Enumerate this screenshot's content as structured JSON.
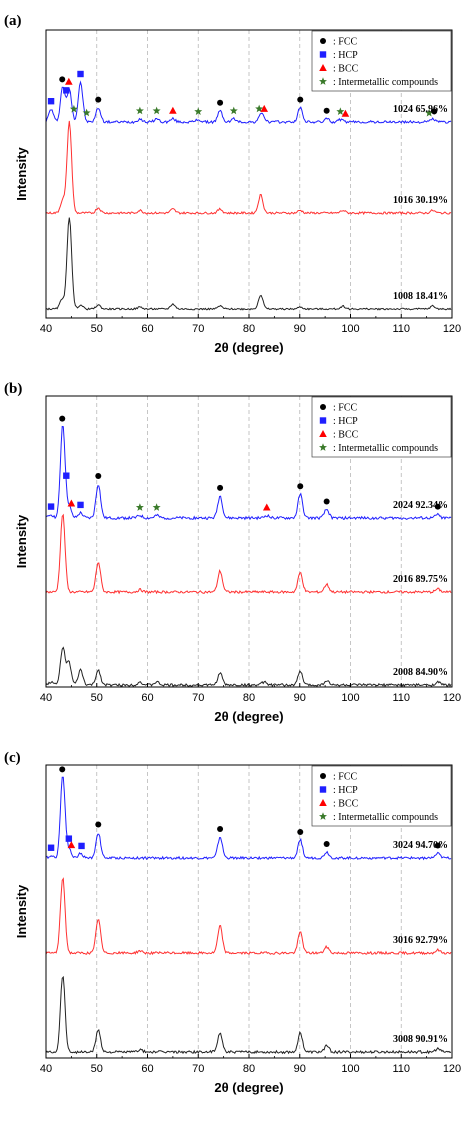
{
  "chart_data": [
    {
      "type": "line",
      "panel_label": "(a)",
      "xlabel": "2θ (degree)",
      "ylabel": "Intensity",
      "xlim": [
        40,
        120
      ],
      "xticks": [
        40,
        50,
        60,
        70,
        80,
        90,
        100,
        110,
        120
      ],
      "grid": "vertical dashed",
      "legend_position": "top-right",
      "legend": [
        {
          "marker": "circle",
          "color": "#000000",
          "label": ": FCC"
        },
        {
          "marker": "square",
          "color": "#1f1fff",
          "label": ": HCP"
        },
        {
          "marker": "triangle",
          "color": "#ff0000",
          "label": ": BCC"
        },
        {
          "marker": "star",
          "color": "#3a7a2a",
          "label": ": Intermetallic compounds"
        }
      ],
      "series": [
        {
          "sample": "1024",
          "percent": "65.96%",
          "color": "#1f1fff",
          "peaks": [
            [
              41,
              8
            ],
            [
              43.3,
              22
            ],
            [
              44.6,
              20
            ],
            [
              46.8,
              25
            ],
            [
              50.3,
              9
            ],
            [
              58.5,
              2
            ],
            [
              61.8,
              2
            ],
            [
              65,
              2
            ],
            [
              70,
              1.5
            ],
            [
              74.3,
              7
            ],
            [
              77,
              2
            ],
            [
              82.5,
              6
            ],
            [
              90.1,
              9
            ],
            [
              95.3,
              2
            ],
            [
              98,
              1.5
            ],
            [
              116.2,
              2
            ]
          ],
          "markers": [
            {
              "x": 41,
              "type": "square"
            },
            {
              "x": 43.2,
              "type": "circle"
            },
            {
              "x": 44,
              "type": "square"
            },
            {
              "x": 44.5,
              "type": "triangle"
            },
            {
              "x": 45.5,
              "type": "star"
            },
            {
              "x": 46.8,
              "type": "square"
            },
            {
              "x": 48,
              "type": "star"
            },
            {
              "x": 50.3,
              "type": "circle"
            },
            {
              "x": 58.5,
              "type": "star"
            },
            {
              "x": 61.8,
              "type": "star"
            },
            {
              "x": 65,
              "type": "triangle"
            },
            {
              "x": 70,
              "type": "star"
            },
            {
              "x": 74.3,
              "type": "circle"
            },
            {
              "x": 77,
              "type": "star"
            },
            {
              "x": 82,
              "type": "star"
            },
            {
              "x": 83,
              "type": "triangle"
            },
            {
              "x": 90.1,
              "type": "circle"
            },
            {
              "x": 95.3,
              "type": "circle"
            },
            {
              "x": 98,
              "type": "star"
            },
            {
              "x": 99,
              "type": "triangle"
            },
            {
              "x": 115.5,
              "type": "star"
            },
            {
              "x": 116.5,
              "type": "circle"
            }
          ]
        },
        {
          "sample": "1016",
          "percent": "30.19%",
          "color": "#ff3030",
          "peaks": [
            [
              43.3,
              10
            ],
            [
              44.6,
              70
            ],
            [
              50.3,
              4
            ],
            [
              58.5,
              2
            ],
            [
              65,
              3
            ],
            [
              74.3,
              3
            ],
            [
              82.3,
              14
            ],
            [
              90.1,
              2
            ],
            [
              98.5,
              2
            ],
            [
              116.2,
              2
            ]
          ],
          "markers": []
        },
        {
          "sample": "1008",
          "percent": "18.41%",
          "color": "#222222",
          "peaks": [
            [
              43.2,
              10
            ],
            [
              44.6,
              92
            ],
            [
              46.8,
              4
            ],
            [
              50.3,
              4
            ],
            [
              58.5,
              2
            ],
            [
              65,
              5
            ],
            [
              74.3,
              3
            ],
            [
              82.3,
              14
            ],
            [
              90.1,
              2
            ],
            [
              98.5,
              3
            ],
            [
              116.2,
              3
            ]
          ],
          "markers": []
        }
      ]
    },
    {
      "type": "line",
      "panel_label": "(b)",
      "xlabel": "2θ (degree)",
      "ylabel": "Intensity",
      "xlim": [
        40,
        120
      ],
      "xticks": [
        40,
        50,
        60,
        70,
        80,
        90,
        100,
        110,
        120
      ],
      "grid": "vertical dashed",
      "legend_position": "top-right",
      "legend": [
        {
          "marker": "circle",
          "color": "#000000",
          "label": ": FCC"
        },
        {
          "marker": "square",
          "color": "#1f1fff",
          "label": ": HCP"
        },
        {
          "marker": "triangle",
          "color": "#ff0000",
          "label": ": BCC"
        },
        {
          "marker": "star",
          "color": "#3a7a2a",
          "label": ": Intermetallic compounds"
        }
      ],
      "series": [
        {
          "sample": "2024",
          "percent": "92.34%",
          "color": "#1f1fff",
          "peaks": [
            [
              41,
              2
            ],
            [
              43.3,
              55
            ],
            [
              44.5,
              7
            ],
            [
              46.8,
              3
            ],
            [
              50.3,
              20
            ],
            [
              58.5,
              1.5
            ],
            [
              61.8,
              1.5
            ],
            [
              74.3,
              13
            ],
            [
              83.5,
              1.5
            ],
            [
              90.1,
              14
            ],
            [
              95.3,
              5
            ],
            [
              117.2,
              2
            ]
          ],
          "markers": [
            {
              "x": 41,
              "type": "square"
            },
            {
              "x": 43.2,
              "type": "circle"
            },
            {
              "x": 44,
              "type": "square"
            },
            {
              "x": 45,
              "type": "triangle"
            },
            {
              "x": 46.8,
              "type": "square"
            },
            {
              "x": 50.3,
              "type": "circle"
            },
            {
              "x": 58.5,
              "type": "star"
            },
            {
              "x": 61.8,
              "type": "star"
            },
            {
              "x": 74.3,
              "type": "circle"
            },
            {
              "x": 83.5,
              "type": "triangle"
            },
            {
              "x": 90.1,
              "type": "circle"
            },
            {
              "x": 95.3,
              "type": "circle"
            },
            {
              "x": 117.2,
              "type": "circle"
            }
          ]
        },
        {
          "sample": "2016",
          "percent": "89.75%",
          "color": "#ff3030",
          "peaks": [
            [
              43.3,
              52
            ],
            [
              50.3,
              20
            ],
            [
              58.5,
              1.5
            ],
            [
              74.3,
              14
            ],
            [
              90.1,
              13
            ],
            [
              95.3,
              5
            ],
            [
              117.2,
              2
            ]
          ],
          "markers": []
        },
        {
          "sample": "2008",
          "percent": "84.90%",
          "color": "#222222",
          "peaks": [
            [
              41,
              2
            ],
            [
              43.3,
              25
            ],
            [
              44.5,
              15
            ],
            [
              46.8,
              10
            ],
            [
              50.3,
              10
            ],
            [
              58.5,
              2
            ],
            [
              61.8,
              2
            ],
            [
              74.3,
              8
            ],
            [
              83,
              2
            ],
            [
              90.1,
              9
            ],
            [
              95.3,
              3
            ],
            [
              117.2,
              2
            ]
          ],
          "markers": []
        }
      ]
    },
    {
      "type": "line",
      "panel_label": "(c)",
      "xlabel": "2θ (degree)",
      "ylabel": "Intensity",
      "xlim": [
        40,
        120
      ],
      "xticks": [
        40,
        50,
        60,
        70,
        80,
        90,
        100,
        110,
        120
      ],
      "grid": "vertical dashed",
      "legend_position": "top-right",
      "legend": [
        {
          "marker": "circle",
          "color": "#000000",
          "label": ": FCC"
        },
        {
          "marker": "square",
          "color": "#1f1fff",
          "label": ": HCP"
        },
        {
          "marker": "triangle",
          "color": "#ff0000",
          "label": ": BCC"
        },
        {
          "marker": "star",
          "color": "#3a7a2a",
          "label": ": Intermetallic compounds"
        }
      ],
      "series": [
        {
          "sample": "3024",
          "percent": "94.70%",
          "color": "#1f1fff",
          "peaks": [
            [
              41,
              1.5
            ],
            [
              43.3,
              55
            ],
            [
              44.5,
              6
            ],
            [
              46.8,
              3
            ],
            [
              50.3,
              17
            ],
            [
              74.3,
              14
            ],
            [
              90.1,
              12
            ],
            [
              95.3,
              4
            ],
            [
              117.2,
              3
            ]
          ],
          "markers": [
            {
              "x": 41,
              "type": "square"
            },
            {
              "x": 43.2,
              "type": "circle"
            },
            {
              "x": 44.5,
              "type": "square"
            },
            {
              "x": 45,
              "type": "triangle"
            },
            {
              "x": 47,
              "type": "square"
            },
            {
              "x": 50.3,
              "type": "circle"
            },
            {
              "x": 74.3,
              "type": "circle"
            },
            {
              "x": 90.1,
              "type": "circle"
            },
            {
              "x": 95.3,
              "type": "circle"
            },
            {
              "x": 117.2,
              "type": "circle"
            }
          ]
        },
        {
          "sample": "3016",
          "percent": "92.79%",
          "color": "#ff3030",
          "peaks": [
            [
              43.3,
              50
            ],
            [
              50.3,
              23
            ],
            [
              58.5,
              1.5
            ],
            [
              74.3,
              18
            ],
            [
              90.1,
              14
            ],
            [
              95.3,
              4
            ],
            [
              117.2,
              2
            ]
          ],
          "markers": []
        },
        {
          "sample": "3008",
          "percent": "90.91%",
          "color": "#222222",
          "peaks": [
            [
              43.3,
              48
            ],
            [
              50.3,
              14
            ],
            [
              58.5,
              1.5
            ],
            [
              74.3,
              12
            ],
            [
              90.1,
              12
            ],
            [
              95.3,
              4
            ],
            [
              117.2,
              2
            ]
          ],
          "markers": []
        }
      ]
    }
  ]
}
